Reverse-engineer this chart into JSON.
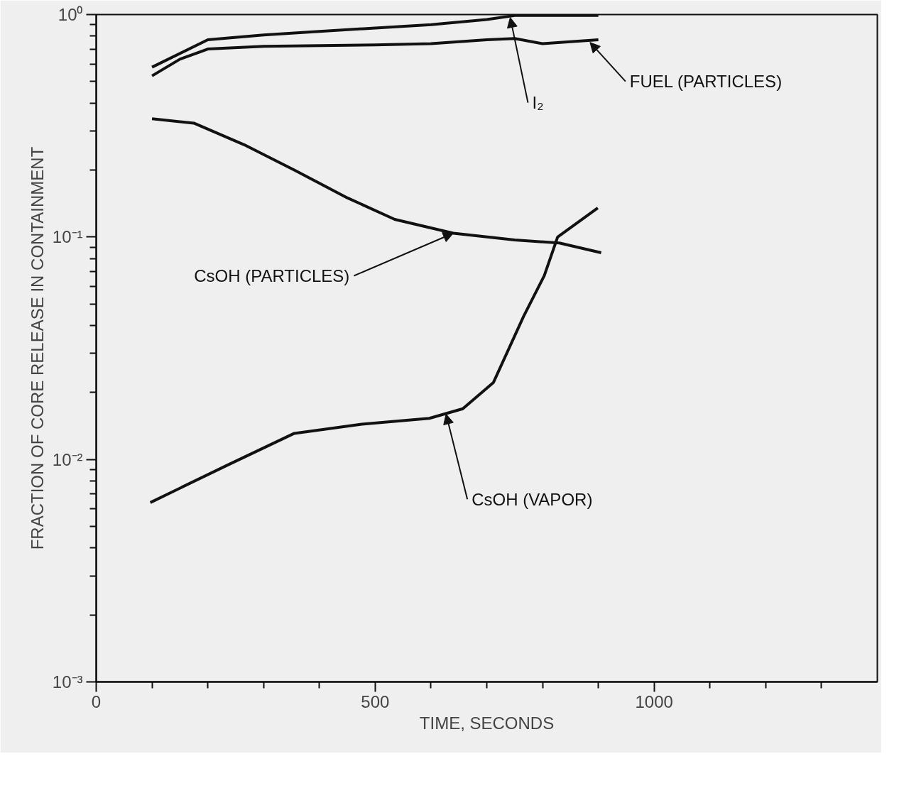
{
  "chart_data": {
    "type": "line",
    "xlabel": "TIME, SECONDS",
    "ylabel": "FRACTION OF CORE RELEASE IN CONTAINMENT",
    "log": "y",
    "grid": false,
    "marker": "none",
    "line_style": "solid",
    "xlim": [
      0,
      1400
    ],
    "ylim": [
      0.001,
      1
    ],
    "xticks": [
      0,
      {
        "value": 100,
        "label": null
      },
      {
        "value": 200,
        "label": null
      },
      {
        "value": 300,
        "label": null
      },
      {
        "value": 400,
        "label": null
      },
      500,
      {
        "value": 600,
        "label": null
      },
      {
        "value": 700,
        "label": null
      },
      {
        "value": 800,
        "label": null
      },
      {
        "value": 900,
        "label": null
      },
      1000,
      {
        "value": 1100,
        "label": null
      },
      {
        "value": 1200,
        "label": null
      },
      {
        "value": 1300,
        "label": null
      }
    ],
    "yticks": [
      {
        "value": 0.001,
        "label": "10⁻³"
      },
      {
        "value": 0.002,
        "label": null
      },
      {
        "value": 0.003,
        "label": null
      },
      {
        "value": 0.004,
        "label": null
      },
      {
        "value": 0.005,
        "label": null
      },
      {
        "value": 0.006,
        "label": null
      },
      {
        "value": 0.007,
        "label": null
      },
      {
        "value": 0.008,
        "label": null
      },
      {
        "value": 0.009,
        "label": null
      },
      {
        "value": 0.01,
        "label": "10⁻²"
      },
      {
        "value": 0.02,
        "label": null
      },
      {
        "value": 0.03,
        "label": null
      },
      {
        "value": 0.04,
        "label": null
      },
      {
        "value": 0.05,
        "label": null
      },
      {
        "value": 0.06,
        "label": null
      },
      {
        "value": 0.07,
        "label": null
      },
      {
        "value": 0.08,
        "label": null
      },
      {
        "value": 0.09,
        "label": null
      },
      {
        "value": 0.1,
        "label": "10⁻¹"
      },
      {
        "value": 0.2,
        "label": null
      },
      {
        "value": 0.3,
        "label": null
      },
      {
        "value": 0.4,
        "label": null
      },
      {
        "value": 0.5,
        "label": null
      },
      {
        "value": 0.6,
        "label": null
      },
      {
        "value": 0.7,
        "label": null
      },
      {
        "value": 0.8,
        "label": null
      },
      {
        "value": 0.9,
        "label": null
      },
      {
        "value": 1,
        "label": "10⁰"
      }
    ],
    "series": [
      {
        "color": "#111111",
        "x": [
          100,
          200,
          300,
          400,
          500,
          600,
          700,
          750,
          900
        ],
        "values": [
          0.58,
          0.77,
          0.81,
          0.84,
          0.87,
          0.9,
          0.95,
          0.99,
          0.99
        ]
      },
      {
        "color": "#111111",
        "x": [
          100,
          150,
          200,
          300,
          500,
          600,
          700,
          750,
          800,
          900
        ],
        "values": [
          0.53,
          0.63,
          0.7,
          0.72,
          0.73,
          0.74,
          0.77,
          0.78,
          0.74,
          0.77
        ]
      },
      {
        "color": "#111111",
        "x": [
          100,
          175,
          265,
          355,
          450,
          535,
          640,
          750,
          830,
          905
        ],
        "values": [
          0.34,
          0.325,
          0.26,
          0.2,
          0.15,
          0.12,
          0.104,
          0.097,
          0.094,
          0.085
        ]
      },
      {
        "color": "#111111",
        "x": [
          97,
          234,
          355,
          476,
          597,
          657,
          712,
          766,
          803,
          827,
          899
        ],
        "values": [
          0.0064,
          0.0094,
          0.0131,
          0.0144,
          0.0153,
          0.0169,
          0.0222,
          0.044,
          0.067,
          0.1,
          0.135
        ]
      }
    ],
    "annotations": [
      {
        "text": "I₂",
        "x": 742,
        "y": 0.97
      },
      {
        "text": "FUEL (PARTICLES)",
        "x": 885,
        "y": 0.75
      },
      {
        "text": "CsOH (PARTICLES)",
        "x": 640,
        "y": 0.104
      },
      {
        "text": "CsOH (VAPOR)",
        "x": 627,
        "y": 0.016
      }
    ]
  }
}
